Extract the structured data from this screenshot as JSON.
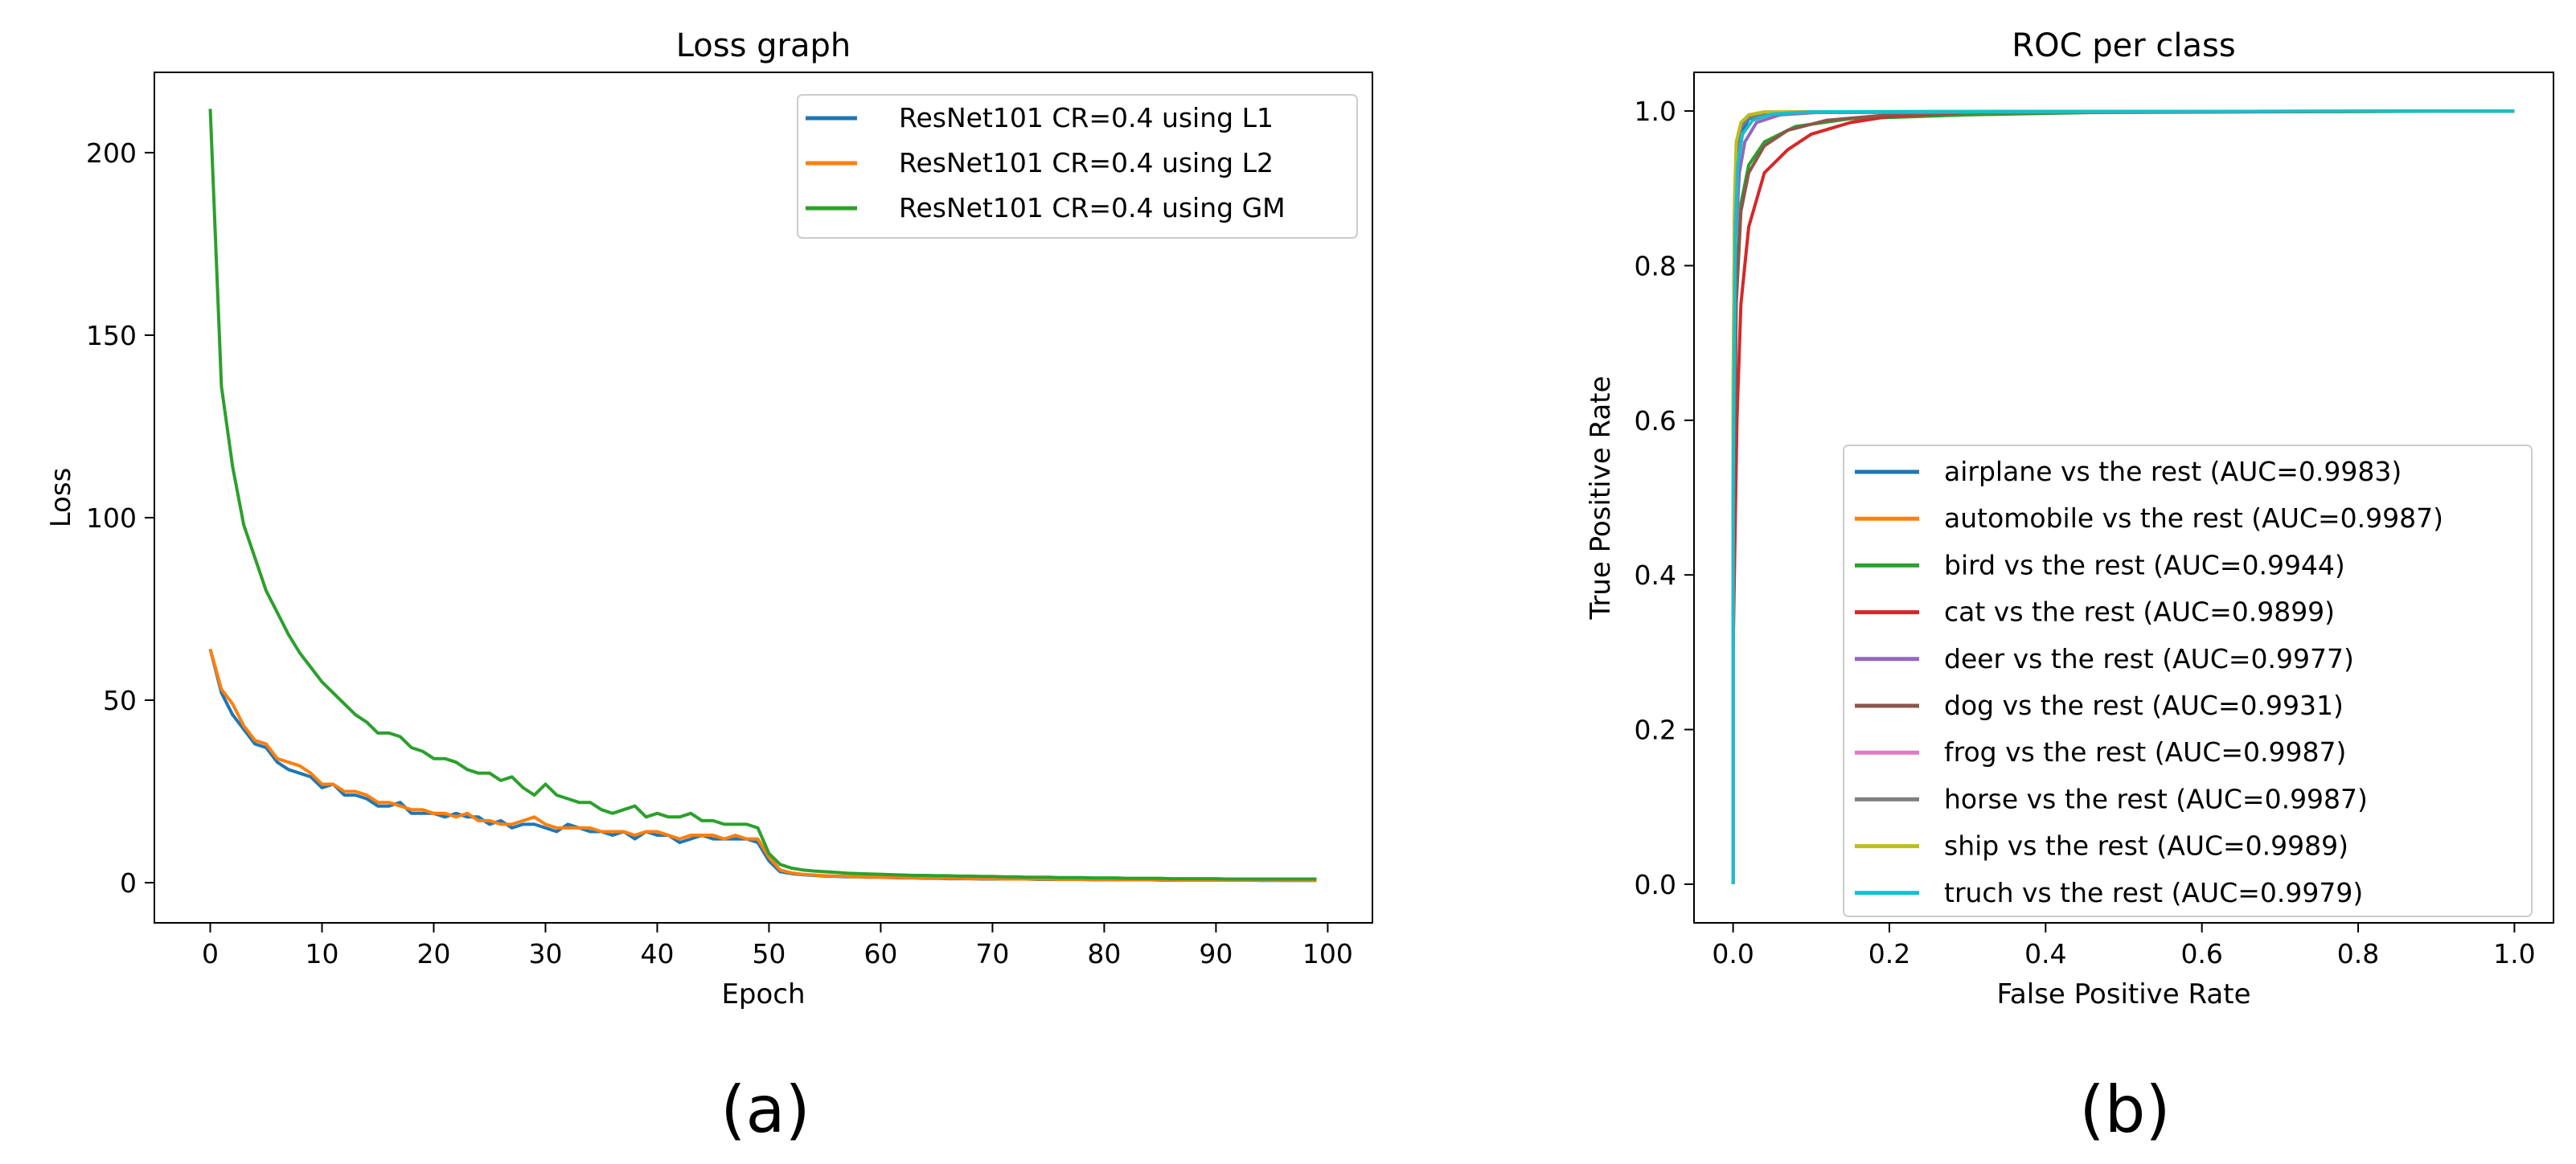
{
  "chart_data": [
    {
      "type": "line",
      "title": "Loss graph",
      "xlabel": "Epoch",
      "ylabel": "Loss",
      "panel_label": "(a)",
      "xlim": [
        -5,
        104
      ],
      "ylim": [
        -11,
        222
      ],
      "xticks": [
        0,
        10,
        20,
        30,
        40,
        50,
        60,
        70,
        80,
        90,
        100
      ],
      "yticks": [
        0,
        50,
        100,
        150,
        200
      ],
      "legend": "top-right",
      "series": [
        {
          "name": "ResNet101 CR=0.4 using L1",
          "color": "#1f77b4",
          "x": [
            0,
            1,
            2,
            3,
            4,
            5,
            6,
            7,
            8,
            9,
            10,
            11,
            12,
            13,
            14,
            15,
            16,
            17,
            18,
            19,
            20,
            21,
            22,
            23,
            24,
            25,
            26,
            27,
            28,
            29,
            30,
            31,
            32,
            33,
            34,
            35,
            36,
            37,
            38,
            39,
            40,
            41,
            42,
            43,
            44,
            45,
            46,
            47,
            48,
            49,
            50,
            51,
            52,
            53,
            54,
            55,
            56,
            57,
            58,
            59,
            60,
            61,
            62,
            63,
            64,
            65,
            66,
            67,
            68,
            69,
            70,
            71,
            72,
            73,
            74,
            75,
            76,
            77,
            78,
            79,
            80,
            81,
            82,
            83,
            84,
            85,
            86,
            87,
            88,
            89,
            90,
            91,
            92,
            93,
            94,
            95,
            96,
            97,
            98,
            99
          ],
          "values": [
            64,
            52,
            46,
            42,
            38,
            37,
            33,
            31,
            30,
            29,
            26,
            27,
            24,
            24,
            23,
            21,
            21,
            22,
            19,
            19,
            19,
            18,
            19,
            18,
            18,
            16,
            17,
            15,
            16,
            16,
            15,
            14,
            16,
            15,
            14,
            14,
            13,
            14,
            12,
            14,
            13,
            13,
            11,
            12,
            13,
            12,
            12,
            12,
            12,
            11,
            6,
            3,
            2.5,
            2.2,
            2,
            1.8,
            1.7,
            1.6,
            1.6,
            1.5,
            1.5,
            1.4,
            1.3,
            1.3,
            1.2,
            1.2,
            1.1,
            1.1,
            1.1,
            1,
            1,
            1,
            1,
            1,
            0.9,
            0.9,
            0.9,
            0.9,
            0.9,
            0.8,
            0.8,
            0.8,
            0.8,
            0.8,
            0.8,
            0.7,
            0.7,
            0.7,
            0.7,
            0.7,
            0.7,
            0.7,
            0.7,
            0.7,
            0.6,
            0.6,
            0.6,
            0.6,
            0.6,
            0.6
          ]
        },
        {
          "name": "ResNet101 CR=0.4 using L2",
          "color": "#ff7f0e",
          "x": [
            0,
            1,
            2,
            3,
            4,
            5,
            6,
            7,
            8,
            9,
            10,
            11,
            12,
            13,
            14,
            15,
            16,
            17,
            18,
            19,
            20,
            21,
            22,
            23,
            24,
            25,
            26,
            27,
            28,
            29,
            30,
            31,
            32,
            33,
            34,
            35,
            36,
            37,
            38,
            39,
            40,
            41,
            42,
            43,
            44,
            45,
            46,
            47,
            48,
            49,
            50,
            51,
            52,
            53,
            54,
            55,
            56,
            57,
            58,
            59,
            60,
            61,
            62,
            63,
            64,
            65,
            66,
            67,
            68,
            69,
            70,
            71,
            72,
            73,
            74,
            75,
            76,
            77,
            78,
            79,
            80,
            81,
            82,
            83,
            84,
            85,
            86,
            87,
            88,
            89,
            90,
            91,
            92,
            93,
            94,
            95,
            96,
            97,
            98,
            99
          ],
          "values": [
            64,
            53,
            49,
            43,
            39,
            38,
            34,
            33,
            32,
            30,
            27,
            27,
            25,
            25,
            24,
            22,
            22,
            21,
            20,
            20,
            19,
            19,
            18,
            19,
            17,
            17,
            16,
            16,
            17,
            18,
            16,
            15,
            15,
            15,
            15,
            14,
            14,
            14,
            13,
            14,
            14,
            13,
            12,
            13,
            13,
            13,
            12,
            13,
            12,
            12,
            7,
            3.5,
            2.7,
            2.3,
            2.1,
            1.9,
            1.8,
            1.7,
            1.6,
            1.6,
            1.5,
            1.5,
            1.4,
            1.4,
            1.3,
            1.3,
            1.2,
            1.2,
            1.1,
            1.1,
            1.1,
            1,
            1,
            1,
            1,
            1,
            0.9,
            0.9,
            0.9,
            0.9,
            0.9,
            0.8,
            0.8,
            0.8,
            0.8,
            0.8,
            0.8,
            0.7,
            0.7,
            0.7,
            0.7,
            0.7,
            0.7,
            0.7,
            0.7,
            0.7,
            0.6,
            0.6,
            0.6,
            0.6
          ]
        },
        {
          "name": "ResNet101 CR=0.4 using GM",
          "color": "#2ca02c",
          "x": [
            0,
            1,
            2,
            3,
            4,
            5,
            6,
            7,
            8,
            9,
            10,
            11,
            12,
            13,
            14,
            15,
            16,
            17,
            18,
            19,
            20,
            21,
            22,
            23,
            24,
            25,
            26,
            27,
            28,
            29,
            30,
            31,
            32,
            33,
            34,
            35,
            36,
            37,
            38,
            39,
            40,
            41,
            42,
            43,
            44,
            45,
            46,
            47,
            48,
            49,
            50,
            51,
            52,
            53,
            54,
            55,
            56,
            57,
            58,
            59,
            60,
            61,
            62,
            63,
            64,
            65,
            66,
            67,
            68,
            69,
            70,
            71,
            72,
            73,
            74,
            75,
            76,
            77,
            78,
            79,
            80,
            81,
            82,
            83,
            84,
            85,
            86,
            87,
            88,
            89,
            90,
            91,
            92,
            93,
            94,
            95,
            96,
            97,
            98,
            99
          ],
          "values": [
            212,
            136,
            114,
            98,
            89,
            80,
            74,
            68,
            63,
            59,
            55,
            52,
            49,
            46,
            44,
            41,
            41,
            40,
            37,
            36,
            34,
            34,
            33,
            31,
            30,
            30,
            28,
            29,
            26,
            24,
            27,
            24,
            23,
            22,
            22,
            20,
            19,
            20,
            21,
            18,
            19,
            18,
            18,
            19,
            17,
            17,
            16,
            16,
            16,
            15,
            8,
            5,
            4,
            3.5,
            3.2,
            3,
            2.8,
            2.6,
            2.5,
            2.4,
            2.3,
            2.2,
            2.1,
            2,
            2,
            1.9,
            1.9,
            1.8,
            1.8,
            1.7,
            1.7,
            1.6,
            1.6,
            1.5,
            1.5,
            1.5,
            1.4,
            1.4,
            1.4,
            1.3,
            1.3,
            1.3,
            1.2,
            1.2,
            1.2,
            1.2,
            1.1,
            1.1,
            1.1,
            1.1,
            1.1,
            1,
            1,
            1,
            1,
            1,
            1,
            1,
            1,
            1
          ]
        }
      ]
    },
    {
      "type": "line",
      "title": "ROC per class",
      "xlabel": "False Positive Rate",
      "ylabel": "True Positive Rate",
      "panel_label": "(b)",
      "xlim": [
        -0.05,
        1.05
      ],
      "ylim": [
        -0.05,
        1.05
      ],
      "xticks": [
        0.0,
        0.2,
        0.4,
        0.6,
        0.8,
        1.0
      ],
      "yticks": [
        0.0,
        0.2,
        0.4,
        0.6,
        0.8,
        1.0
      ],
      "tick_labels": [
        "0.0",
        "0.2",
        "0.4",
        "0.6",
        "0.8",
        "1.0"
      ],
      "legend": "lower-right",
      "series": [
        {
          "name": "airplane vs the rest (AUC=0.9983)",
          "color": "#1f77b4",
          "x": [
            0,
            0,
            0.003,
            0.006,
            0.01,
            0.02,
            0.04,
            0.08,
            1
          ],
          "values": [
            0,
            0.5,
            0.85,
            0.93,
            0.97,
            0.99,
            0.995,
            0.999,
            1
          ]
        },
        {
          "name": "automobile vs the rest (AUC=0.9987)",
          "color": "#ff7f0e",
          "x": [
            0,
            0,
            0.002,
            0.005,
            0.01,
            0.02,
            0.04,
            0.07,
            1
          ],
          "values": [
            0,
            0.6,
            0.88,
            0.95,
            0.98,
            0.992,
            0.997,
            0.999,
            1
          ]
        },
        {
          "name": "bird vs the rest (AUC=0.9944)",
          "color": "#2ca02c",
          "x": [
            0,
            0,
            0.003,
            0.01,
            0.02,
            0.04,
            0.08,
            0.15,
            0.3,
            0.46,
            1
          ],
          "values": [
            0,
            0.4,
            0.75,
            0.88,
            0.93,
            0.96,
            0.98,
            0.99,
            0.995,
            0.998,
            1
          ]
        },
        {
          "name": "cat vs the rest (AUC=0.9899)",
          "color": "#d62728",
          "x": [
            0,
            0,
            0.005,
            0.01,
            0.02,
            0.04,
            0.07,
            0.1,
            0.15,
            0.2,
            0.3,
            1
          ],
          "values": [
            0,
            0.3,
            0.6,
            0.75,
            0.85,
            0.92,
            0.95,
            0.97,
            0.985,
            0.993,
            0.998,
            1
          ]
        },
        {
          "name": "deer vs the rest (AUC=0.9977)",
          "color": "#9467bd",
          "x": [
            0,
            0,
            0.003,
            0.008,
            0.015,
            0.03,
            0.06,
            0.12,
            1
          ],
          "values": [
            0,
            0.5,
            0.83,
            0.92,
            0.96,
            0.985,
            0.995,
            0.999,
            1
          ]
        },
        {
          "name": "dog vs the rest (AUC=0.9931)",
          "color": "#8c564b",
          "x": [
            0,
            0,
            0.004,
            0.01,
            0.02,
            0.04,
            0.07,
            0.12,
            0.2,
            0.3,
            1
          ],
          "values": [
            0,
            0.4,
            0.75,
            0.87,
            0.92,
            0.955,
            0.975,
            0.988,
            0.995,
            0.998,
            1
          ]
        },
        {
          "name": "frog vs the rest (AUC=0.9987)",
          "color": "#e377c2",
          "x": [
            0,
            0,
            0.002,
            0.005,
            0.01,
            0.02,
            0.05,
            1
          ],
          "values": [
            0,
            0.6,
            0.88,
            0.95,
            0.98,
            0.992,
            0.998,
            1
          ]
        },
        {
          "name": "horse vs the rest (AUC=0.9987)",
          "color": "#7f7f7f",
          "x": [
            0,
            0,
            0.002,
            0.005,
            0.01,
            0.02,
            0.05,
            1
          ],
          "values": [
            0,
            0.6,
            0.87,
            0.95,
            0.98,
            0.992,
            0.998,
            1
          ]
        },
        {
          "name": "ship vs the rest (AUC=0.9989)",
          "color": "#bcbd22",
          "x": [
            0,
            0,
            0.002,
            0.004,
            0.01,
            0.02,
            0.04,
            1
          ],
          "values": [
            0,
            0.65,
            0.89,
            0.96,
            0.985,
            0.995,
            0.999,
            1
          ]
        },
        {
          "name": "truch vs the rest (AUC=0.9979)",
          "color": "#17becf",
          "x": [
            0,
            0,
            0.003,
            0.006,
            0.012,
            0.025,
            0.05,
            0.1,
            1
          ],
          "values": [
            0,
            0.5,
            0.85,
            0.93,
            0.97,
            0.988,
            0.996,
            0.999,
            1
          ]
        }
      ]
    }
  ]
}
